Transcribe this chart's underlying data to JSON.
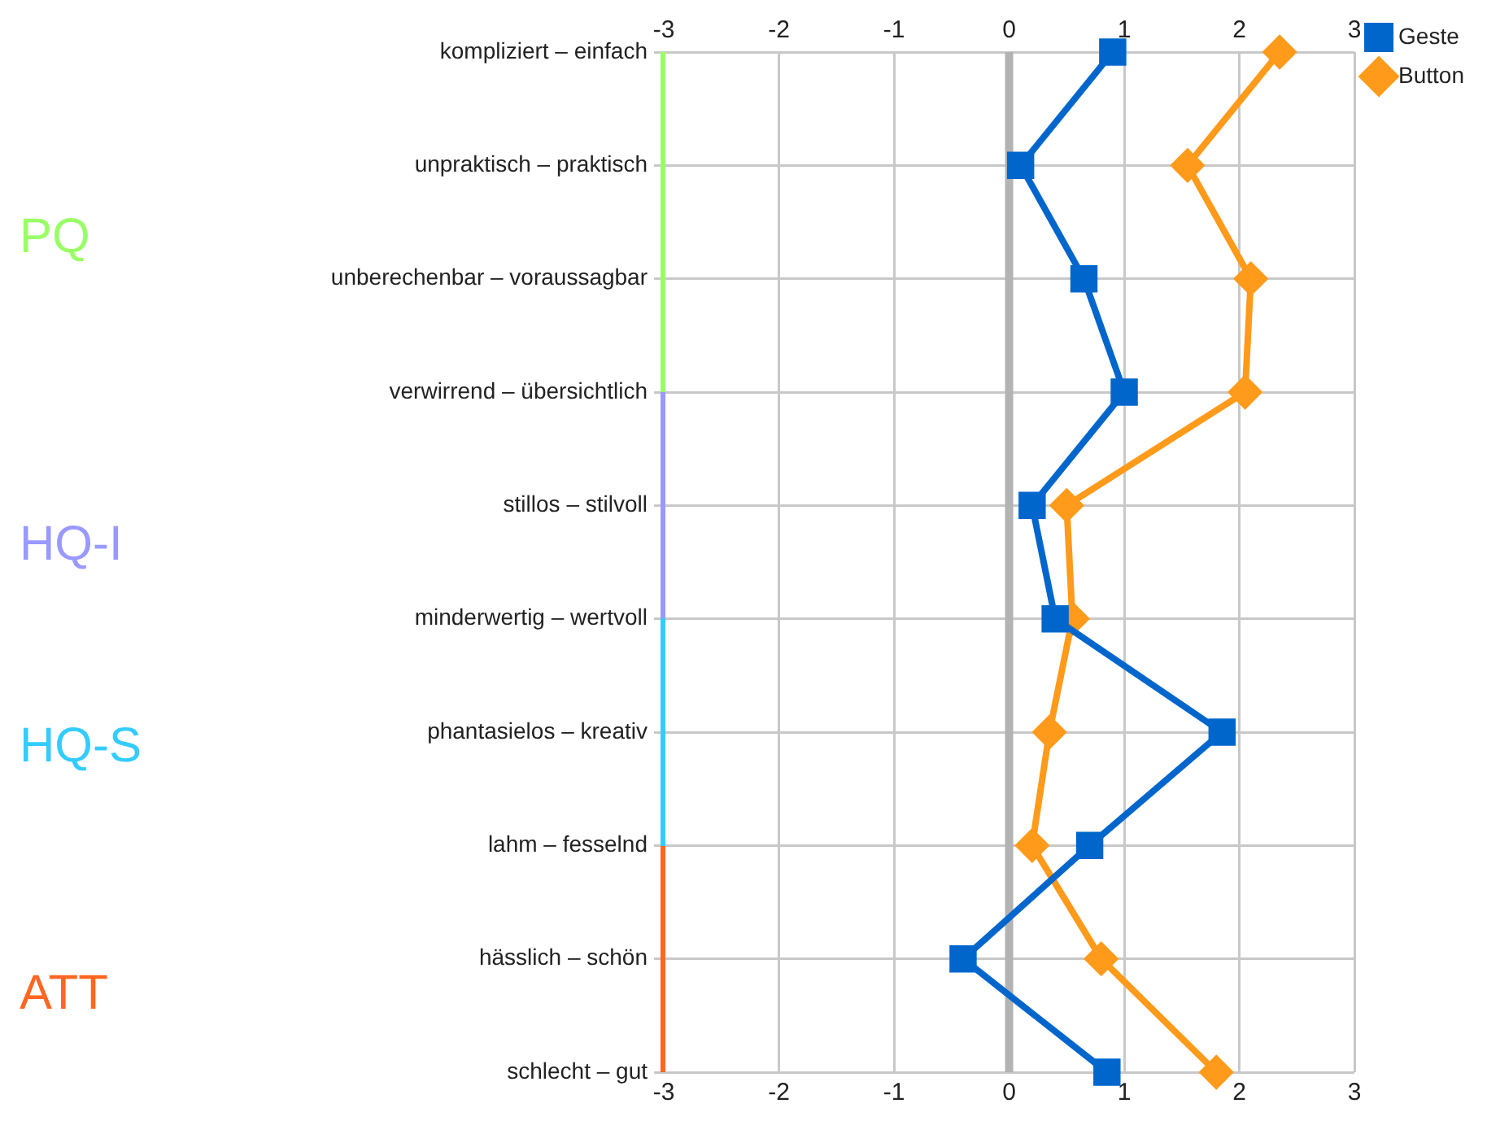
{
  "chart_data": {
    "type": "line",
    "orientation": "horizontal",
    "categories": [
      "kompliziert – einfach",
      "unpraktisch – praktisch",
      "unberechenbar – voraussagbar",
      "verwirrend – übersichtlich",
      "stillos – stilvoll",
      "minderwertig – wertvoll",
      "phantasielos – kreativ",
      "lahm – fesselnd",
      "hässlich – schön",
      "schlecht – gut"
    ],
    "series": [
      {
        "name": "Geste",
        "color": "#0066cc",
        "marker": "square",
        "values": [
          0.9,
          0.1,
          0.65,
          1.0,
          0.2,
          0.4,
          1.85,
          0.7,
          -0.4,
          0.85
        ]
      },
      {
        "name": "Button",
        "color": "#ff9a1a",
        "marker": "diamond",
        "values": [
          2.35,
          1.55,
          2.1,
          2.05,
          0.5,
          0.55,
          0.35,
          0.2,
          0.8,
          1.8
        ]
      }
    ],
    "xlim": [
      -3,
      3
    ],
    "xticks": [
      -3,
      -2,
      -1,
      0,
      1,
      2,
      3
    ],
    "x2lim": [
      -3,
      3
    ],
    "x2ticks": [
      -3,
      -2,
      -1,
      0,
      1,
      2,
      3
    ],
    "ref_lines": [
      {
        "axis": "x",
        "value": 0,
        "color": "#b3b3b3"
      }
    ],
    "annotations": [
      "PQ",
      "HQ-I",
      "HQ-S",
      "ATT"
    ],
    "grid": true,
    "legend": "top right",
    "line_style": "solid"
  }
}
